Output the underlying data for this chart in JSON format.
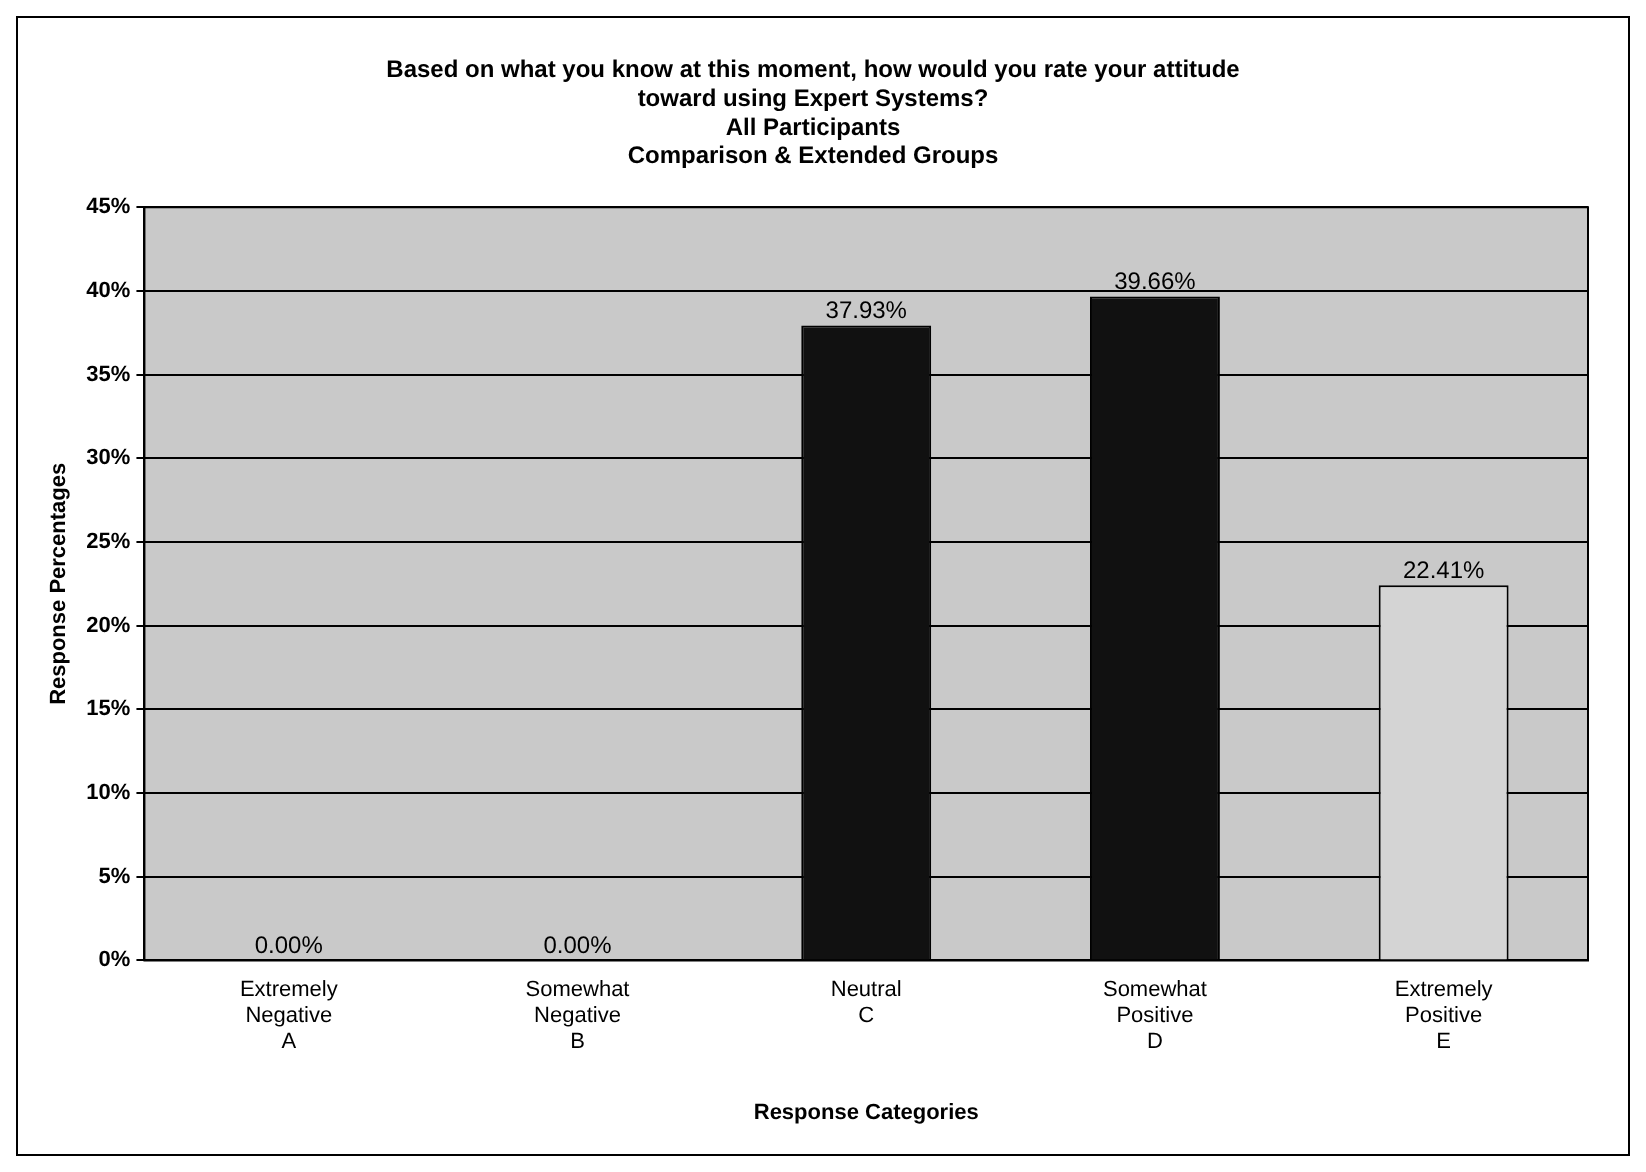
{
  "chart_data": {
    "type": "bar",
    "title": [
      "Based on what you know at this moment, how would you rate your attitude",
      "toward using Expert Systems?",
      "All Participants",
      "Comparison & Extended Groups"
    ],
    "xlabel": "Response Categories",
    "ylabel": "Response Percentages",
    "categories": [
      "Extremely\nNegative\nA",
      "Somewhat\nNegative\nB",
      "Neutral\nC",
      "Somewhat\nPositive\nD",
      "Extremely\nPositive\nE"
    ],
    "values": [
      0,
      0,
      37.93,
      39.66,
      22.41
    ],
    "value_labels": [
      "0.00%",
      "0.00%",
      "37.93%",
      "39.66%",
      "22.41%"
    ],
    "colors": [
      "#111111",
      "#111111",
      "#111111",
      "#111111",
      "#d4d4d4"
    ],
    "ylim": [
      0,
      45
    ],
    "yticks": [
      {
        "value": 0,
        "label": "0%"
      },
      {
        "value": 5,
        "label": "5%"
      },
      {
        "value": 10,
        "label": "10%"
      },
      {
        "value": 15,
        "label": "15%"
      },
      {
        "value": 20,
        "label": "20%"
      },
      {
        "value": 25,
        "label": "25%"
      },
      {
        "value": 30,
        "label": "30%"
      },
      {
        "value": 35,
        "label": "35%"
      },
      {
        "value": 40,
        "label": "40%"
      },
      {
        "value": 45,
        "label": "45%"
      }
    ],
    "grid": "y",
    "legend": false
  }
}
